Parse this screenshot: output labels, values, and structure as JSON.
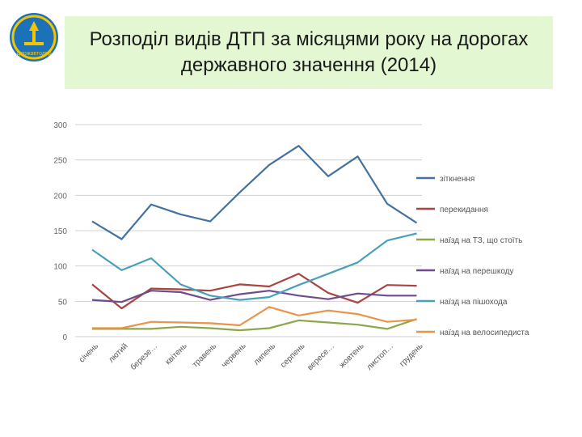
{
  "title": "Розподіл видів ДТП за місяцями року на дорогах державного значення (2014)",
  "logo": {
    "text": "Державтодор",
    "colors": {
      "bg": "#1b72b8",
      "ring": "#f5c400",
      "mark": "#f5c400"
    }
  },
  "chart_data": {
    "type": "line",
    "title": "",
    "xlabel": "",
    "ylabel": "",
    "ylim": [
      0,
      300
    ],
    "yticks": [
      0,
      50,
      100,
      150,
      200,
      250,
      300
    ],
    "grid": true,
    "legend_position": "right",
    "categories": [
      "січень",
      "лютий",
      "березе…",
      "квітень",
      "травень",
      "червень",
      "липень",
      "серпень",
      "вересе…",
      "жовтень",
      "листоп…",
      "грудень"
    ],
    "series": [
      {
        "name": "зіткнення",
        "color": "#4472a0",
        "values": [
          163,
          138,
          187,
          173,
          163,
          204,
          243,
          270,
          227,
          255,
          188,
          161
        ]
      },
      {
        "name": "перекидання",
        "color": "#a84540",
        "values": [
          74,
          40,
          68,
          67,
          65,
          74,
          71,
          89,
          62,
          48,
          73,
          72
        ]
      },
      {
        "name": "наїзд на ТЗ, що стоїть",
        "color": "#8aa84a",
        "values": [
          11,
          11,
          11,
          14,
          12,
          9,
          12,
          23,
          20,
          17,
          11,
          25
        ]
      },
      {
        "name": "наїзд на перешкоду",
        "color": "#6e4c8c",
        "values": [
          52,
          49,
          65,
          63,
          52,
          60,
          65,
          58,
          53,
          61,
          58,
          58
        ]
      },
      {
        "name": "наїзд на пішохода",
        "color": "#4aa0ba",
        "values": [
          123,
          94,
          111,
          74,
          58,
          52,
          56,
          73,
          89,
          105,
          136,
          146
        ]
      },
      {
        "name": "наїзд на велосипедиста",
        "color": "#e8954a",
        "values": [
          12,
          12,
          21,
          20,
          19,
          16,
          42,
          30,
          37,
          32,
          21,
          24
        ]
      }
    ]
  }
}
